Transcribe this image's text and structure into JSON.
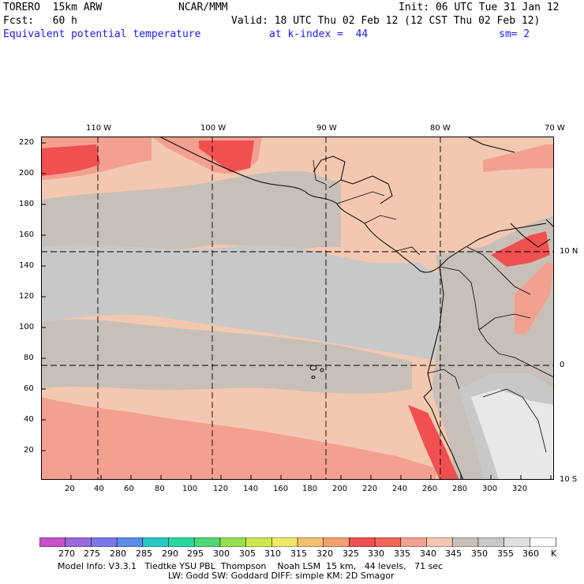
{
  "header": {
    "model": "TORERO  15km ARW",
    "center": "NCAR/MMM",
    "init": "Init: 06 UTC Tue 31 Jan 12",
    "fcst": "Fcst:   60 h",
    "valid": "Valid: 18 UTC Thu 02 Feb 12 (12 CST Thu 02 Feb 12)",
    "field": "Equivalent potential temperature",
    "level": "at k-index =  44",
    "smooth": "sm= 2"
  },
  "axes": {
    "top_lon": [
      "110 W",
      "100 W",
      "90 W",
      "80 W",
      "70 W"
    ],
    "right_lat": [
      "10 N",
      "0",
      "10 S"
    ],
    "y_ticks": [
      "220",
      "200",
      "180",
      "160",
      "140",
      "120",
      "100",
      "80",
      "60",
      "40",
      "20"
    ],
    "x_ticks": [
      "20",
      "40",
      "60",
      "80",
      "100",
      "120",
      "140",
      "160",
      "180",
      "200",
      "220",
      "240",
      "260",
      "280",
      "300",
      "320"
    ]
  },
  "colorbar": {
    "labels": [
      "270",
      "275",
      "280",
      "285",
      "290",
      "295",
      "300",
      "305",
      "310",
      "315",
      "320",
      "325",
      "330",
      "335",
      "340",
      "345",
      "350",
      "355",
      "360",
      "K"
    ],
    "colors": [
      "#c850c8",
      "#9a6ad8",
      "#7a78e8",
      "#5a8ce8",
      "#28c8c8",
      "#28d8a0",
      "#50d878",
      "#98e050",
      "#d0e850",
      "#f0e868",
      "#f4c070",
      "#f4a070",
      "#f05050",
      "#f06858",
      "#f4a090",
      "#f4c8b0",
      "#c8c0b8",
      "#c8c8c8",
      "#e0e0e0",
      "#ffffff"
    ]
  },
  "footer": {
    "line1": "Model Info: V3.3.1   Tiedtke YSU PBL  Thompson    Noah LSM  15 km,   44 levels,   71 sec",
    "line2": "LW: Godd SW: Goddard DIFF: simple KM: 2D Smagor"
  }
}
